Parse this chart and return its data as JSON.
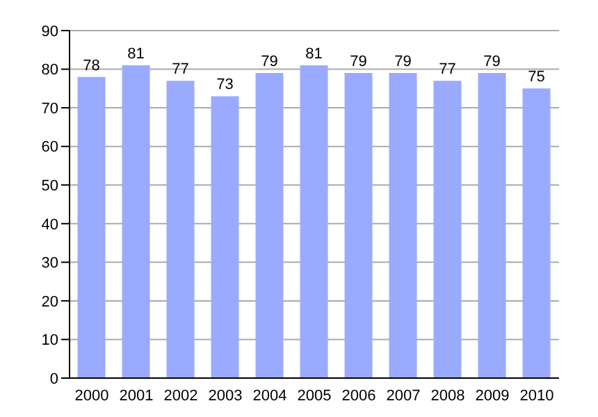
{
  "chart_data": {
    "type": "bar",
    "categories": [
      "2000",
      "2001",
      "2002",
      "2003",
      "2004",
      "2005",
      "2006",
      "2007",
      "2008",
      "2009",
      "2010"
    ],
    "values": [
      78,
      81,
      77,
      73,
      79,
      81,
      79,
      79,
      77,
      79,
      75
    ],
    "color": "#99aaff",
    "ylim": [
      0,
      90
    ],
    "yticks": [
      0,
      10,
      20,
      30,
      40,
      50,
      60,
      70,
      80,
      90
    ],
    "grid": "y",
    "data_labels": true
  }
}
